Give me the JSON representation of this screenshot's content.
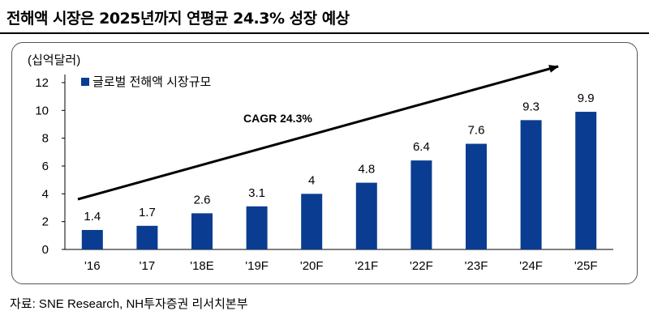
{
  "page": {
    "title": "전해액 시장은 2025년까지 연평균 24.3% 성장 예상",
    "source": "자료: SNE Research, NH투자증권 리서치본부"
  },
  "chart_data": {
    "type": "bar",
    "categories": [
      "'16",
      "'17",
      "'18E",
      "'19F",
      "'20F",
      "'21F",
      "'22F",
      "'23F",
      "'24F",
      "'25F"
    ],
    "series": [
      {
        "name": "글로벌 전해액 시장규모",
        "values": [
          1.4,
          1.7,
          2.6,
          3.1,
          4,
          4.8,
          6.4,
          7.6,
          9.3,
          9.9
        ]
      }
    ],
    "data_labels": [
      "1.4",
      "1.7",
      "2.6",
      "3.1",
      "4",
      "4.8",
      "6.4",
      "7.6",
      "9.3",
      "9.9"
    ],
    "ylabel": "(십억달러)",
    "yticks": [
      "0",
      "2",
      "4",
      "6",
      "8",
      "10",
      "12"
    ],
    "ylim": [
      0,
      12
    ],
    "annotation": "CAGR 24.3%",
    "legend_position": "top-left",
    "grid": false,
    "bar_color": "#0a3d91"
  }
}
